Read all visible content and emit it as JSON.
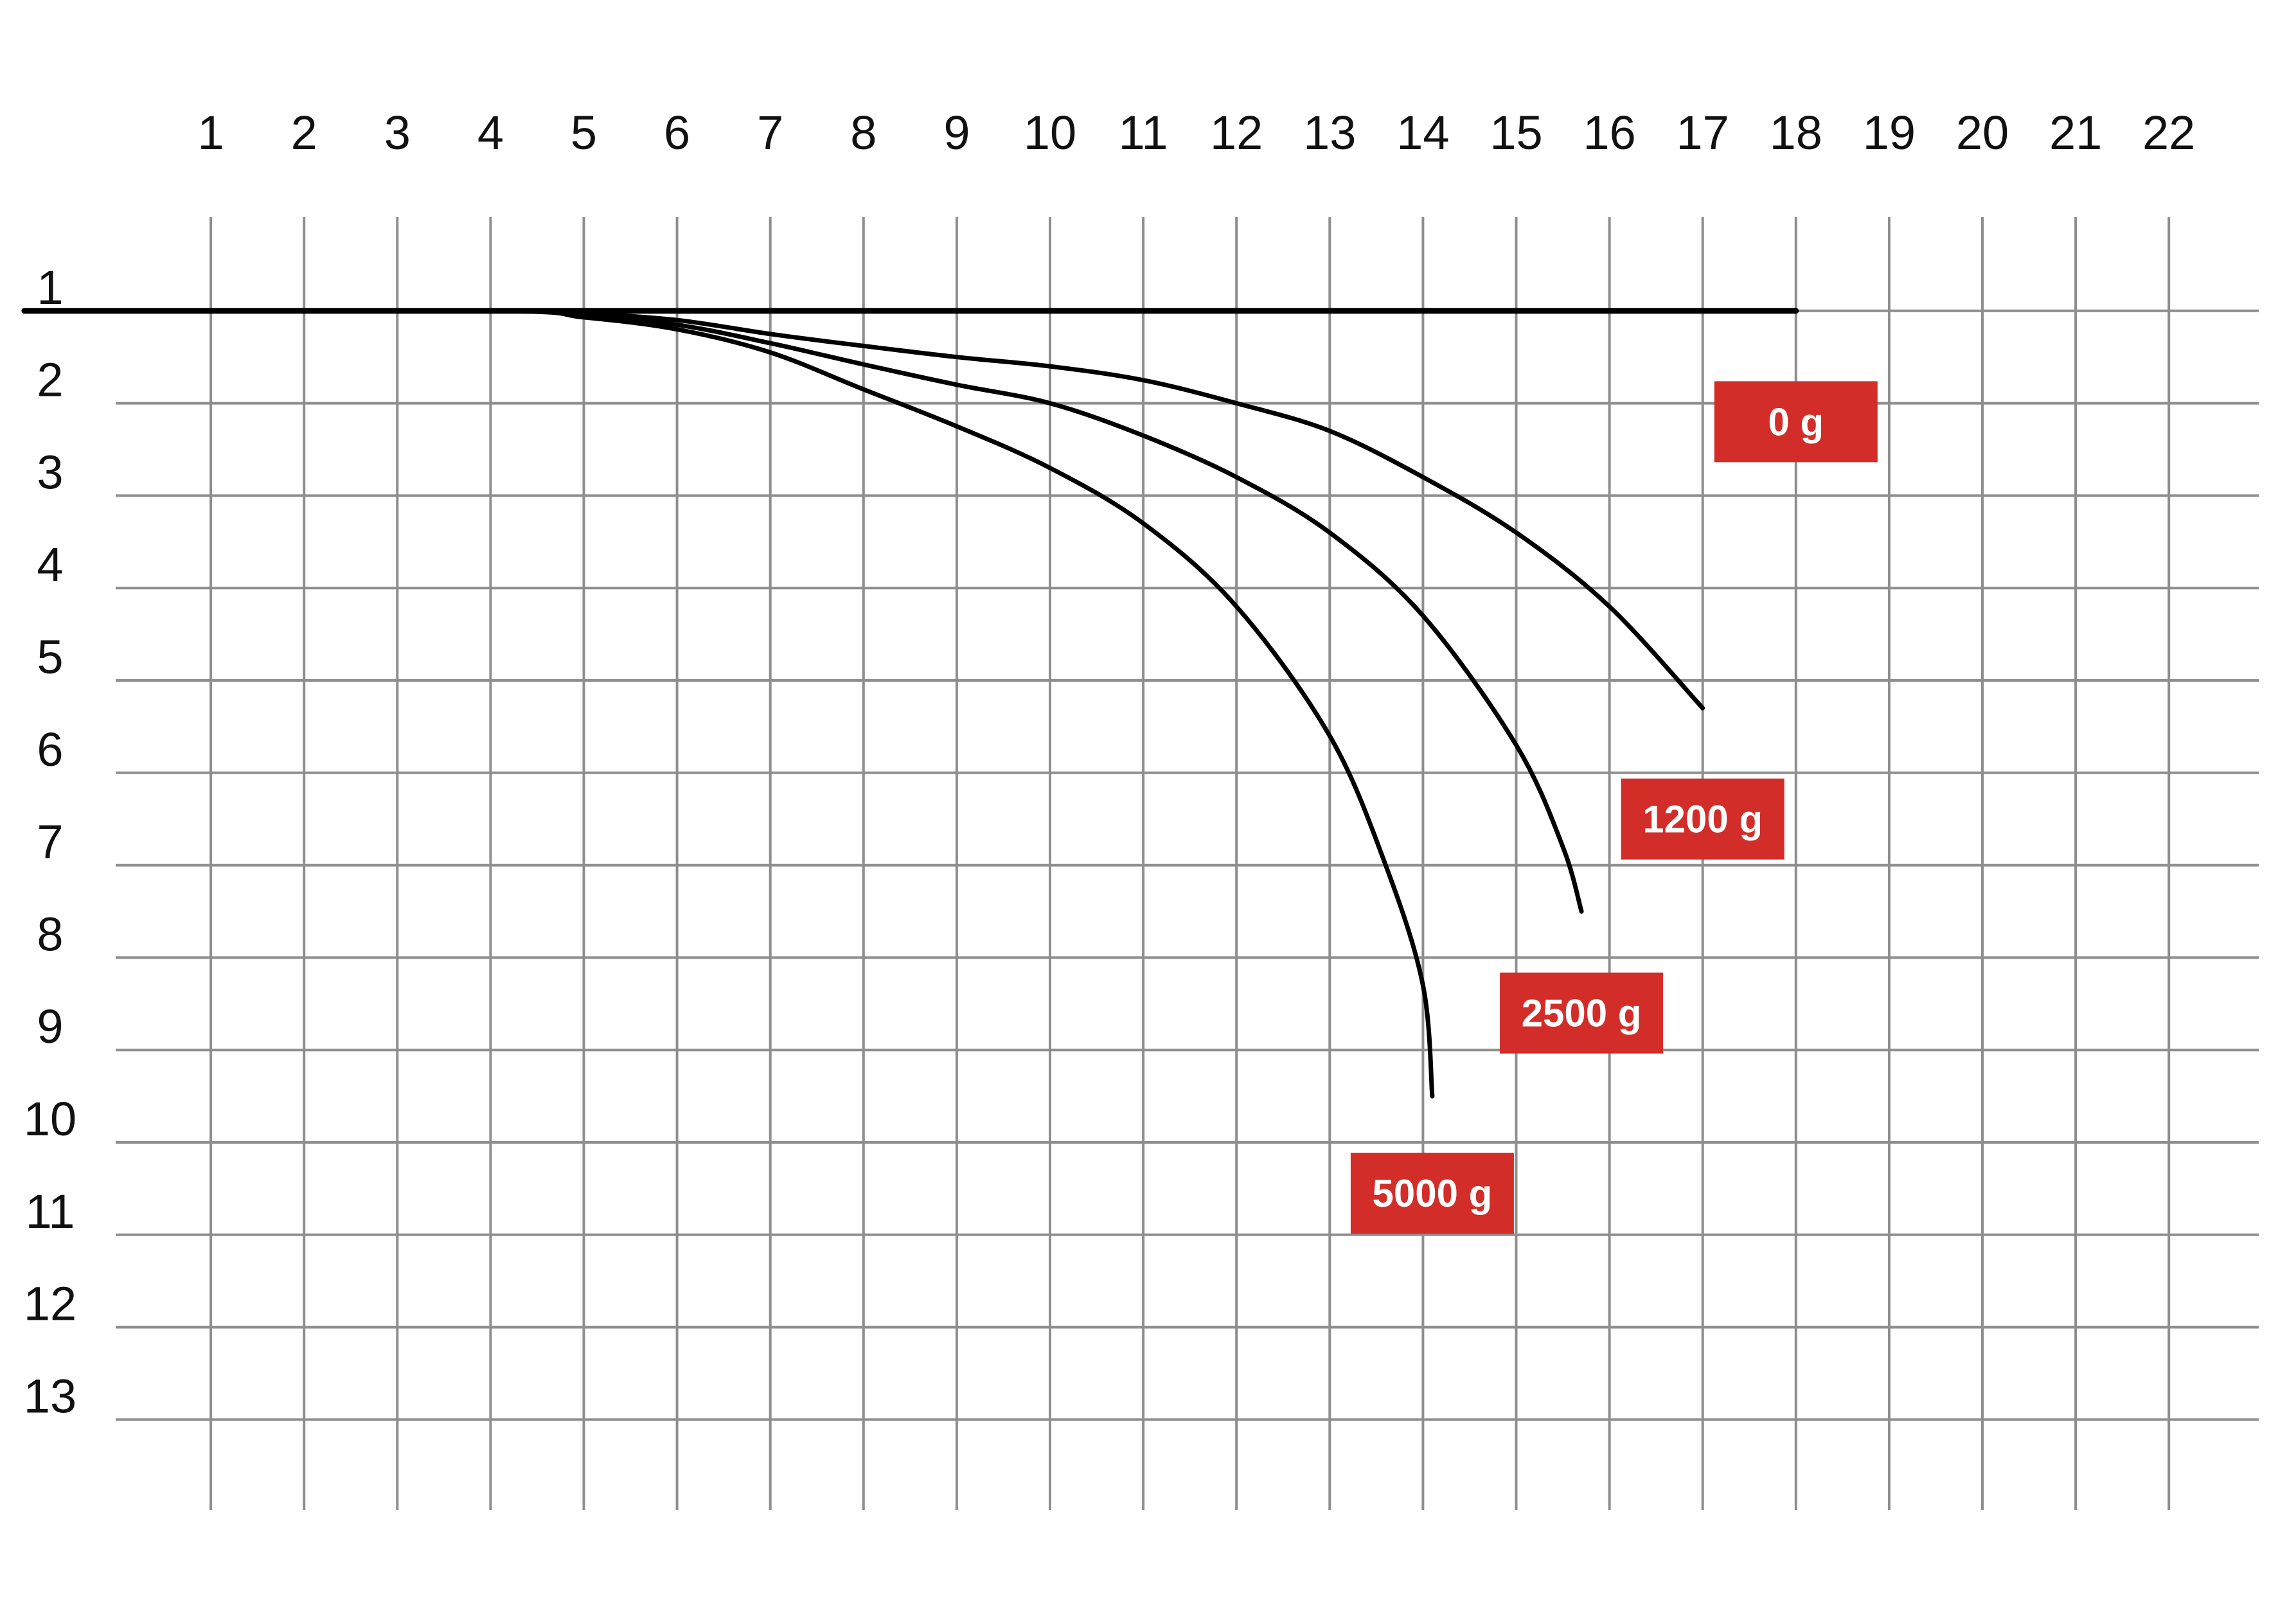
{
  "chart_data": {
    "type": "line",
    "x_ticks": [
      "1",
      "2",
      "3",
      "4",
      "5",
      "6",
      "7",
      "8",
      "9",
      "10",
      "11",
      "12",
      "13",
      "14",
      "15",
      "16",
      "17",
      "18",
      "19",
      "20",
      "21",
      "22"
    ],
    "y_ticks": [
      "1",
      "2",
      "3",
      "4",
      "5",
      "6",
      "7",
      "8",
      "9",
      "10",
      "11",
      "12",
      "13"
    ],
    "xlim": [
      0,
      23
    ],
    "ylim": [
      0,
      14
    ],
    "y_inverted": true,
    "grid": true,
    "series": [
      {
        "name": "0 g",
        "stroke": 9,
        "points": [
          [
            -1,
            1.0
          ],
          [
            4,
            1.0
          ],
          [
            10,
            1.0
          ],
          [
            17,
            1.0
          ],
          [
            18,
            1.0
          ]
        ],
        "label_at": [
          18,
          2.2
        ]
      },
      {
        "name": "1200 g",
        "stroke": 7,
        "points": [
          [
            -1,
            1.0
          ],
          [
            4,
            1.0
          ],
          [
            5,
            1.03
          ],
          [
            6,
            1.1
          ],
          [
            7,
            1.25
          ],
          [
            8,
            1.38
          ],
          [
            9,
            1.5
          ],
          [
            10,
            1.6
          ],
          [
            11,
            1.75
          ],
          [
            12,
            2.0
          ],
          [
            13,
            2.3
          ],
          [
            14,
            2.8
          ],
          [
            15,
            3.4
          ],
          [
            16,
            4.2
          ],
          [
            17,
            5.3
          ]
        ],
        "label_at": [
          17,
          6.5
        ]
      },
      {
        "name": "2500 g",
        "stroke": 7,
        "points": [
          [
            -1,
            1.0
          ],
          [
            4,
            1.0
          ],
          [
            5,
            1.05
          ],
          [
            6,
            1.15
          ],
          [
            7,
            1.35
          ],
          [
            8,
            1.58
          ],
          [
            9,
            1.8
          ],
          [
            10,
            2.0
          ],
          [
            11,
            2.35
          ],
          [
            12,
            2.8
          ],
          [
            13,
            3.4
          ],
          [
            14,
            4.3
          ],
          [
            15,
            5.7
          ],
          [
            15.5,
            6.8
          ],
          [
            15.7,
            7.5
          ]
        ],
        "label_at": [
          15.7,
          8.6
        ]
      },
      {
        "name": "5000 g",
        "stroke": 7,
        "points": [
          [
            -1,
            1.0
          ],
          [
            4,
            1.0
          ],
          [
            5,
            1.07
          ],
          [
            6,
            1.2
          ],
          [
            7,
            1.45
          ],
          [
            8,
            1.85
          ],
          [
            9,
            2.25
          ],
          [
            10,
            2.7
          ],
          [
            11,
            3.3
          ],
          [
            12,
            4.2
          ],
          [
            13,
            5.6
          ],
          [
            13.6,
            7.0
          ],
          [
            14,
            8.3
          ],
          [
            14.1,
            9.5
          ]
        ],
        "label_at": [
          14.1,
          10.55
        ]
      }
    ],
    "badge_color": "#d22d28",
    "line_color": "#000000",
    "grid_color": "#8e8e8e"
  }
}
